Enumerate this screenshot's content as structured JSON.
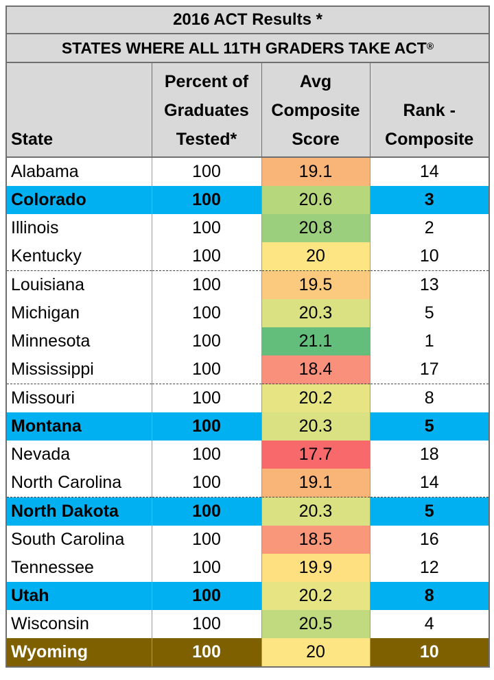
{
  "title": "2016 ACT Results *",
  "subtitle": "STATES WHERE ALL 11TH GRADERS TAKE ACT",
  "subtitle_mark": "®",
  "headers": {
    "state": "State",
    "pct_line1": "Percent of",
    "pct_line2": "Graduates",
    "pct_line3": "Tested*",
    "score_line1": "Avg",
    "score_line2": "Composite",
    "score_line3": "Score",
    "rank_line1": "Rank -",
    "rank_line2": "Composite"
  },
  "rows": [
    {
      "state": "Alabama",
      "pct": "100",
      "score": "19.1",
      "rank": "14",
      "score_color": "#f9b577",
      "style": "normal"
    },
    {
      "state": "Colorado",
      "pct": "100",
      "score": "20.6",
      "rank": "3",
      "score_color": "#b7d77d",
      "style": "highlight"
    },
    {
      "state": "Illinois",
      "pct": "100",
      "score": "20.8",
      "rank": "2",
      "score_color": "#9ccf7d",
      "style": "normal"
    },
    {
      "state": "Kentucky",
      "pct": "100",
      "score": "20",
      "rank": "10",
      "score_color": "#fee583",
      "style": "normal"
    },
    {
      "state": "Louisiana",
      "pct": "100",
      "score": "19.5",
      "rank": "13",
      "score_color": "#fcca7e",
      "style": "normal"
    },
    {
      "state": "Michigan",
      "pct": "100",
      "score": "20.3",
      "rank": "5",
      "score_color": "#d9e183",
      "style": "normal"
    },
    {
      "state": "Minnesota",
      "pct": "100",
      "score": "21.1",
      "rank": "1",
      "score_color": "#63be7b",
      "style": "normal"
    },
    {
      "state": "Mississippi",
      "pct": "100",
      "score": "18.4",
      "rank": "17",
      "score_color": "#f8907c",
      "style": "normal"
    },
    {
      "state": "Missouri",
      "pct": "100",
      "score": "20.2",
      "rank": "8",
      "score_color": "#e6e483",
      "style": "normal"
    },
    {
      "state": "Montana",
      "pct": "100",
      "score": "20.3",
      "rank": "5",
      "score_color": "#d9e183",
      "style": "highlight"
    },
    {
      "state": "Nevada",
      "pct": "100",
      "score": "17.7",
      "rank": "18",
      "score_color": "#f8696b",
      "style": "normal"
    },
    {
      "state": "North Carolina",
      "pct": "100",
      "score": "19.1",
      "rank": "14",
      "score_color": "#f9b577",
      "style": "normal"
    },
    {
      "state": "North Dakota",
      "pct": "100",
      "score": "20.3",
      "rank": "5",
      "score_color": "#d9e183",
      "style": "highlight"
    },
    {
      "state": "South Carolina",
      "pct": "100",
      "score": "18.5",
      "rank": "16",
      "score_color": "#f8977a",
      "style": "normal"
    },
    {
      "state": "Tennessee",
      "pct": "100",
      "score": "19.9",
      "rank": "12",
      "score_color": "#fee081",
      "style": "normal"
    },
    {
      "state": "Utah",
      "pct": "100",
      "score": "20.2",
      "rank": "8",
      "score_color": "#e6e483",
      "style": "highlight"
    },
    {
      "state": "Wisconsin",
      "pct": "100",
      "score": "20.5",
      "rank": "4",
      "score_color": "#c2da7f",
      "style": "normal"
    },
    {
      "state": "Wyoming",
      "pct": "100",
      "score": "20",
      "rank": "10",
      "score_color": "#fee583",
      "style": "wyoming"
    }
  ],
  "colors": {
    "header_gray": "#d9d9d9",
    "highlight_blue": "#00b0f0",
    "wyoming_brown": "#7f6000"
  }
}
